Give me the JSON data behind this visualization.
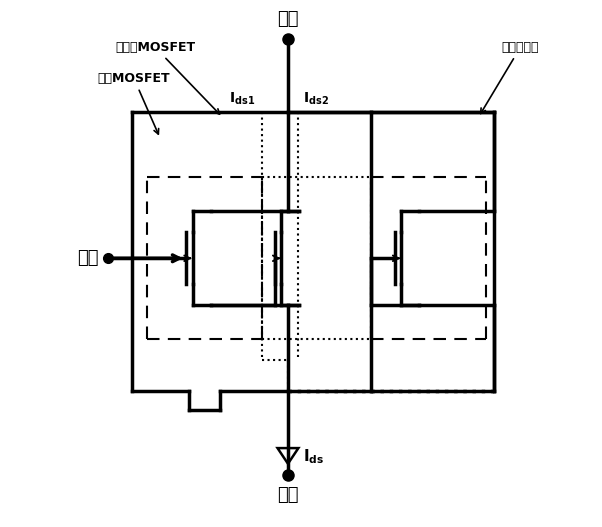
{
  "bg_color": "#ffffff",
  "fig_width": 6.02,
  "fig_height": 5.27,
  "dpi": 100,
  "labels": {
    "drain": "漏极",
    "source": "源极",
    "gate": "栅极",
    "ids": "I_{ds}",
    "ids1": "I_{ds1}",
    "ids2": "I_{ds2}",
    "label1": "分离栅MOSFET",
    "label2": "常规MOSFET",
    "label3": "栅控二极管"
  }
}
